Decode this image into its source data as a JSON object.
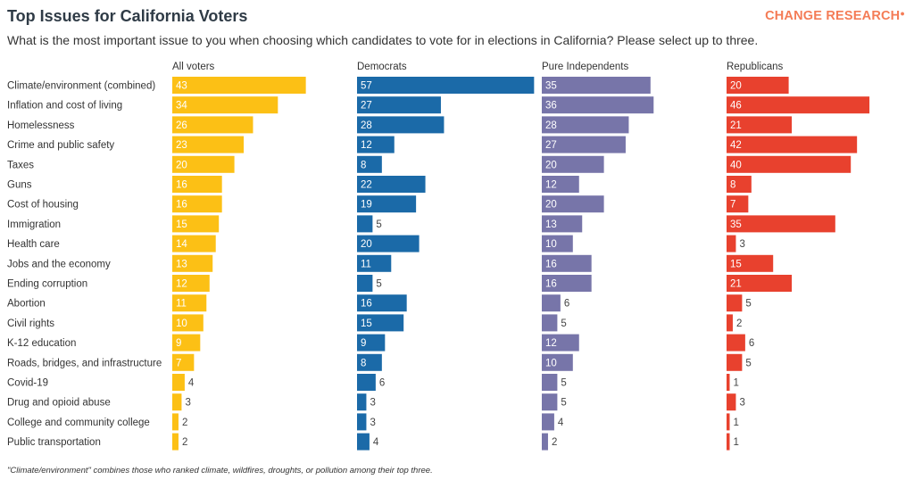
{
  "header": {
    "title": "Top Issues for California Voters",
    "subtitle": "What is the most important issue to you when choosing which candidates to vote for in elections in California? Please select up to three.",
    "logo": {
      "change": "CHANGE",
      "research": "RESEARCH",
      "mark": "●"
    },
    "footnote": "\"Climate/environment\" combines those who ranked climate, wildfires, droughts, or pollution among their top three."
  },
  "colors": {
    "all_voters": "#fcc015",
    "democrats": "#1b6aa8",
    "independents": "#7775a9",
    "republicans": "#e8412e",
    "label_inside": "#ffffff",
    "label_outside": "#444444"
  },
  "chart_data": {
    "type": "bar",
    "orientation": "horizontal",
    "panels": "small-multiples",
    "categories": [
      "Climate/environment (combined)",
      "Inflation and cost of living",
      "Homelessness",
      "Crime and public safety",
      "Taxes",
      "Guns",
      "Cost of housing",
      "Immigration",
      "Health care",
      "Jobs and the economy",
      "Ending corruption",
      "Abortion",
      "Civil rights",
      "K-12 education",
      "Roads, bridges, and infrastructure",
      "Covid-19",
      "Drug and opioid abuse",
      "College and community college",
      "Public transportation"
    ],
    "series": [
      {
        "name": "All voters",
        "values": [
          43,
          34,
          26,
          23,
          20,
          16,
          16,
          15,
          14,
          13,
          12,
          11,
          10,
          9,
          7,
          4,
          3,
          2,
          2
        ]
      },
      {
        "name": "Democrats",
        "values": [
          57,
          27,
          28,
          12,
          8,
          22,
          19,
          5,
          20,
          11,
          5,
          16,
          15,
          9,
          8,
          6,
          3,
          3,
          4
        ]
      },
      {
        "name": "Pure Independents",
        "values": [
          35,
          36,
          28,
          27,
          20,
          12,
          20,
          13,
          10,
          16,
          16,
          6,
          5,
          12,
          10,
          5,
          5,
          4,
          2
        ]
      },
      {
        "name": "Republicans",
        "values": [
          20,
          46,
          21,
          42,
          40,
          8,
          7,
          35,
          3,
          15,
          21,
          5,
          2,
          6,
          5,
          1,
          3,
          1,
          1
        ]
      }
    ],
    "grid": false,
    "data_labels": true
  }
}
